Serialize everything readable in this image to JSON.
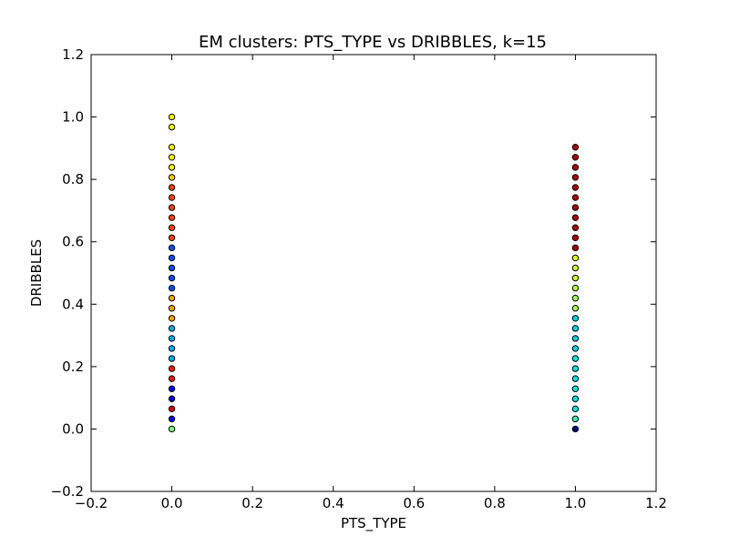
{
  "chart_data": {
    "type": "scatter",
    "title": "EM clusters: PTS_TYPE vs DRIBBLES, k=15",
    "xlabel": "PTS_TYPE",
    "ylabel": "DRIBBLES",
    "xlim": [
      -0.2,
      1.2
    ],
    "ylim": [
      -0.2,
      1.2
    ],
    "xticks": [
      "−0.2",
      "0.0",
      "0.2",
      "0.4",
      "0.6",
      "0.8",
      "1.0",
      "1.2"
    ],
    "yticks": [
      "−0.2",
      "0.0",
      "0.2",
      "0.4",
      "0.6",
      "0.8",
      "1.0",
      "1.2"
    ],
    "grid": false,
    "marker_edge_color": "#000000",
    "points": [
      {
        "x": 0,
        "y": 0.0,
        "color": "#7fff7f"
      },
      {
        "x": 0,
        "y": 0.0323,
        "color": "#0000ff"
      },
      {
        "x": 0,
        "y": 0.0645,
        "color": "#cc0000"
      },
      {
        "x": 0,
        "y": 0.0968,
        "color": "#0000cc"
      },
      {
        "x": 0,
        "y": 0.129,
        "color": "#0000ff"
      },
      {
        "x": 0,
        "y": 0.1613,
        "color": "#ff1a00"
      },
      {
        "x": 0,
        "y": 0.1935,
        "color": "#ff1a00"
      },
      {
        "x": 0,
        "y": 0.2258,
        "color": "#00b0f0"
      },
      {
        "x": 0,
        "y": 0.2581,
        "color": "#00b0f0"
      },
      {
        "x": 0,
        "y": 0.2903,
        "color": "#00b0f0"
      },
      {
        "x": 0,
        "y": 0.3226,
        "color": "#00b0f0"
      },
      {
        "x": 0,
        "y": 0.3548,
        "color": "#ffa500"
      },
      {
        "x": 0,
        "y": 0.3871,
        "color": "#ffa500"
      },
      {
        "x": 0,
        "y": 0.4194,
        "color": "#ffa500"
      },
      {
        "x": 0,
        "y": 0.4516,
        "color": "#0050ff"
      },
      {
        "x": 0,
        "y": 0.4839,
        "color": "#0050ff"
      },
      {
        "x": 0,
        "y": 0.5161,
        "color": "#0050ff"
      },
      {
        "x": 0,
        "y": 0.5484,
        "color": "#0050ff"
      },
      {
        "x": 0,
        "y": 0.5806,
        "color": "#0050ff"
      },
      {
        "x": 0,
        "y": 0.6129,
        "color": "#ff4500"
      },
      {
        "x": 0,
        "y": 0.6452,
        "color": "#ff4500"
      },
      {
        "x": 0,
        "y": 0.6774,
        "color": "#ff4500"
      },
      {
        "x": 0,
        "y": 0.7097,
        "color": "#ff4500"
      },
      {
        "x": 0,
        "y": 0.7419,
        "color": "#ff4500"
      },
      {
        "x": 0,
        "y": 0.7742,
        "color": "#ff4500"
      },
      {
        "x": 0,
        "y": 0.8065,
        "color": "#ffd000"
      },
      {
        "x": 0,
        "y": 0.8387,
        "color": "#ffff00"
      },
      {
        "x": 0,
        "y": 0.871,
        "color": "#ffff00"
      },
      {
        "x": 0,
        "y": 0.9032,
        "color": "#ffff00"
      },
      {
        "x": 0,
        "y": 0.9677,
        "color": "#ffff00"
      },
      {
        "x": 0,
        "y": 1.0,
        "color": "#ffff00"
      },
      {
        "x": 1,
        "y": 0.0,
        "color": "#000080"
      },
      {
        "x": 1,
        "y": 0.0323,
        "color": "#40ffb0"
      },
      {
        "x": 1,
        "y": 0.0645,
        "color": "#00e5e5"
      },
      {
        "x": 1,
        "y": 0.0968,
        "color": "#00e5e5"
      },
      {
        "x": 1,
        "y": 0.129,
        "color": "#00e5e5"
      },
      {
        "x": 1,
        "y": 0.1613,
        "color": "#00e5e5"
      },
      {
        "x": 1,
        "y": 0.1935,
        "color": "#00e5e5"
      },
      {
        "x": 1,
        "y": 0.2258,
        "color": "#00e5e5"
      },
      {
        "x": 1,
        "y": 0.2581,
        "color": "#00d0e8"
      },
      {
        "x": 1,
        "y": 0.2903,
        "color": "#00d0e8"
      },
      {
        "x": 1,
        "y": 0.3226,
        "color": "#00d0e8"
      },
      {
        "x": 1,
        "y": 0.3548,
        "color": "#00d0e8"
      },
      {
        "x": 1,
        "y": 0.3871,
        "color": "#9fff60"
      },
      {
        "x": 1,
        "y": 0.4194,
        "color": "#9fff60"
      },
      {
        "x": 1,
        "y": 0.4516,
        "color": "#b0ff40"
      },
      {
        "x": 1,
        "y": 0.4839,
        "color": "#ccff33"
      },
      {
        "x": 1,
        "y": 0.5161,
        "color": "#ccff33"
      },
      {
        "x": 1,
        "y": 0.5484,
        "color": "#ddff22"
      },
      {
        "x": 1,
        "y": 0.5806,
        "color": "#aa0000"
      },
      {
        "x": 1,
        "y": 0.6129,
        "color": "#aa0000"
      },
      {
        "x": 1,
        "y": 0.6452,
        "color": "#aa0000"
      },
      {
        "x": 1,
        "y": 0.6774,
        "color": "#aa0000"
      },
      {
        "x": 1,
        "y": 0.7097,
        "color": "#aa0000"
      },
      {
        "x": 1,
        "y": 0.7419,
        "color": "#aa0000"
      },
      {
        "x": 1,
        "y": 0.7742,
        "color": "#aa0000"
      },
      {
        "x": 1,
        "y": 0.8065,
        "color": "#aa0000"
      },
      {
        "x": 1,
        "y": 0.8387,
        "color": "#aa0000"
      },
      {
        "x": 1,
        "y": 0.871,
        "color": "#aa0000"
      },
      {
        "x": 1,
        "y": 0.9032,
        "color": "#aa0000"
      }
    ]
  }
}
